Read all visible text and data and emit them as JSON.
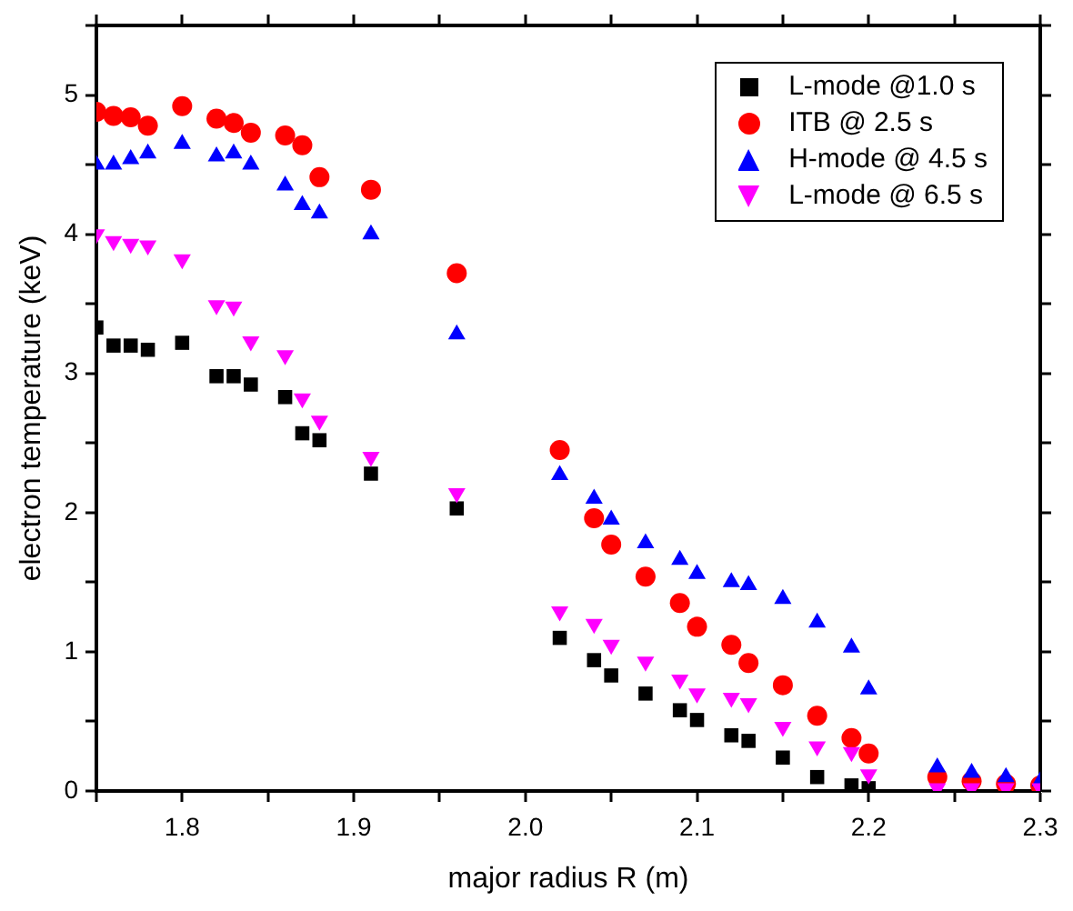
{
  "chart_data": {
    "type": "scatter",
    "xlabel": "major radius R (m)",
    "ylabel": "electron temperature (keV)",
    "x": [
      1.75,
      1.76,
      1.77,
      1.78,
      1.8,
      1.82,
      1.83,
      1.84,
      1.86,
      1.87,
      1.88,
      1.91,
      1.96,
      2.02,
      2.04,
      2.05,
      2.07,
      2.09,
      2.1,
      2.12,
      2.13,
      2.15,
      2.17,
      2.19,
      2.2,
      2.24,
      2.26,
      2.28,
      2.3
    ],
    "xlim": [
      1.75,
      2.3
    ],
    "xticks": [
      {
        "value": 1.75,
        "label": null
      },
      1.8,
      {
        "value": 1.85,
        "label": null
      },
      1.9,
      {
        "value": 1.95,
        "label": null
      },
      {
        "value": 2,
        "label": "2.0"
      },
      {
        "value": 2.05,
        "label": null
      },
      2.1,
      {
        "value": 2.15,
        "label": null
      },
      2.2,
      {
        "value": 2.25,
        "label": null
      },
      2.3
    ],
    "ylim": [
      0,
      5.5
    ],
    "yticks": [
      0,
      {
        "value": 0.5,
        "label": null
      },
      1,
      {
        "value": 1.5,
        "label": null
      },
      2,
      {
        "value": 2.5,
        "label": null
      },
      3,
      {
        "value": 3.5,
        "label": null
      },
      4,
      {
        "value": 4.5,
        "label": null
      },
      5,
      {
        "value": 5.5,
        "label": null
      }
    ],
    "grid": false,
    "legend": "top right",
    "series": [
      {
        "name": "L-mode @1.0 s",
        "color": "#000000",
        "marker": "square",
        "values": [
          3.33,
          3.2,
          3.2,
          3.17,
          3.22,
          2.98,
          2.98,
          2.92,
          2.83,
          2.57,
          2.52,
          2.28,
          2.03,
          1.1,
          0.94,
          0.83,
          0.7,
          0.58,
          0.51,
          0.4,
          0.36,
          0.24,
          0.1,
          0.04,
          0.02,
          null,
          null,
          null,
          null
        ]
      },
      {
        "name": "ITB @ 2.5 s",
        "color": "#ff0000",
        "marker": "circle",
        "values": [
          4.88,
          4.85,
          4.84,
          4.78,
          4.92,
          4.83,
          4.8,
          4.73,
          4.71,
          4.64,
          4.41,
          4.32,
          3.72,
          2.45,
          1.96,
          1.77,
          1.54,
          1.35,
          1.18,
          1.05,
          0.92,
          0.76,
          0.54,
          0.38,
          0.27,
          0.1,
          0.07,
          0.05,
          0.04
        ]
      },
      {
        "name": "H-mode @ 4.5 s",
        "color": "#0000ff",
        "marker": "triangle",
        "values": [
          4.5,
          4.5,
          4.54,
          4.58,
          4.65,
          4.56,
          4.58,
          4.5,
          4.35,
          4.21,
          4.15,
          4.0,
          3.28,
          2.27,
          2.1,
          1.95,
          1.78,
          1.66,
          1.56,
          1.5,
          1.48,
          1.38,
          1.21,
          1.03,
          0.73,
          0.17,
          0.13,
          0.1,
          0.07
        ]
      },
      {
        "name": "L-mode @ 6.5 s",
        "color": "#ff00ff",
        "marker": "triangle-down",
        "values": [
          4.0,
          3.95,
          3.93,
          3.92,
          3.82,
          3.49,
          3.48,
          3.23,
          3.13,
          2.82,
          2.66,
          2.4,
          2.14,
          1.29,
          1.2,
          1.05,
          0.93,
          0.8,
          0.7,
          0.67,
          0.63,
          0.46,
          0.32,
          0.28,
          0.12,
          0.02,
          0.02,
          0.02,
          0.02
        ]
      }
    ]
  }
}
